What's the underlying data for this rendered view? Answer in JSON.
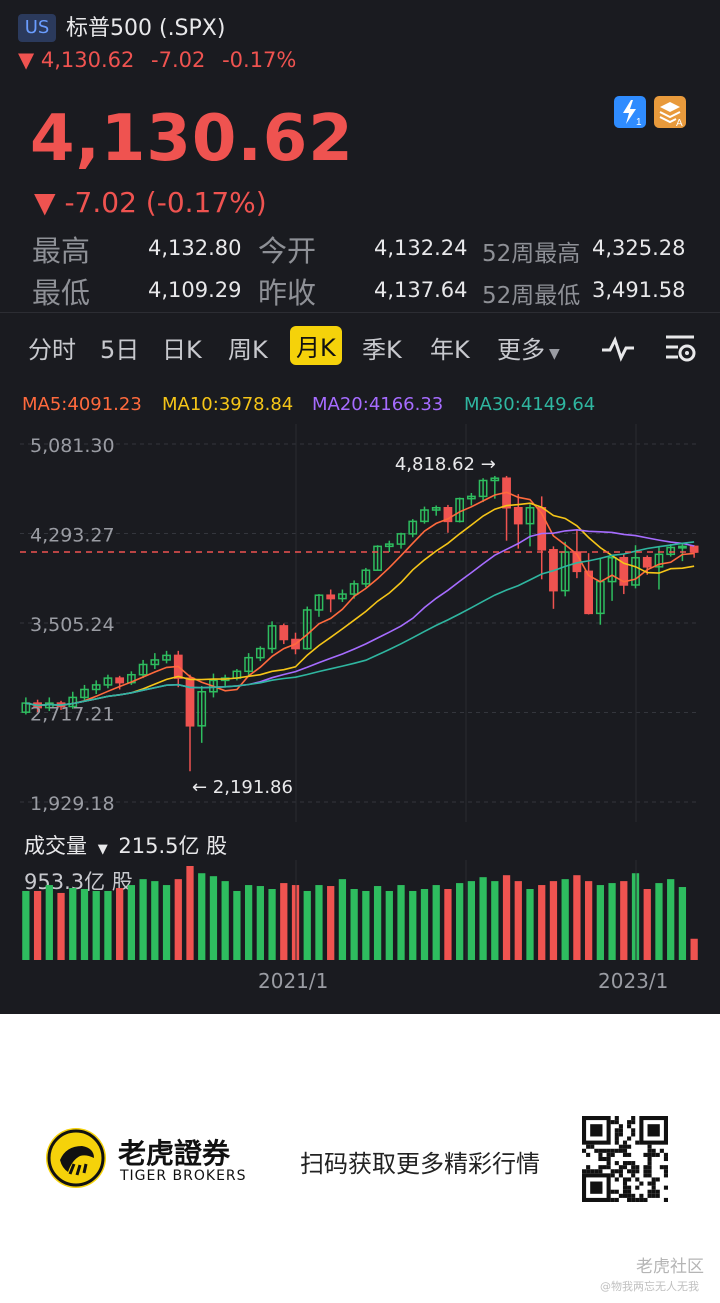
{
  "header": {
    "market": "US",
    "title": "标普500 (.SPX)",
    "sub_arrow": "▼",
    "sub_price": "4,130.62",
    "sub_change": "-7.02",
    "sub_pct": "-0.17%",
    "price": "4,130.62",
    "change_arrow": "▼",
    "change_text": "-7.02 (-0.17%)",
    "icons": [
      "lightning-icon",
      "layers-icon"
    ]
  },
  "stats": {
    "high_label": "最高",
    "high": "4,132.80",
    "open_label": "今开",
    "open": "4,132.24",
    "w52_high_label": "52周最高",
    "w52_high": "4,325.28",
    "low_label": "最低",
    "low": "4,109.29",
    "prev_label": "昨收",
    "prev": "4,137.64",
    "w52_low_label": "52周最低",
    "w52_low": "3,491.58"
  },
  "tabs": {
    "items": [
      "分时",
      "5日",
      "日K",
      "周K",
      "月K",
      "季K",
      "年K",
      "更多"
    ],
    "active": "月K"
  },
  "ma": {
    "ma5": "MA5:4091.23",
    "ma10": "MA10:3978.84",
    "ma20": "MA20:4166.33",
    "ma30": "MA30:4149.64",
    "colors": {
      "ma5": "#ff6a3d",
      "ma10": "#f5c518",
      "ma20": "#a66cff",
      "ma30": "#2fb6a0",
      "up": "#2ebd5f",
      "down": "#ef5350"
    }
  },
  "chart_data": {
    "type": "candlestick",
    "yticks": [
      "5,081.30",
      "4,293.27",
      "3,505.24",
      "2,717.21",
      "1,929.18"
    ],
    "ylim": [
      1929.18,
      5081.3
    ],
    "xticks": [
      "2021/1",
      "2023/1"
    ],
    "annotations": [
      {
        "text": "4,818.62",
        "direction": "right"
      },
      {
        "text": "2,191.86",
        "direction": "left"
      }
    ],
    "last_price": 4130.62,
    "candles": [
      [
        2720,
        2800,
        2700,
        2850
      ],
      [
        2800,
        2760,
        2720,
        2830
      ],
      [
        2760,
        2800,
        2730,
        2850
      ],
      [
        2800,
        2770,
        2740,
        2820
      ],
      [
        2770,
        2850,
        2750,
        2900
      ],
      [
        2850,
        2920,
        2820,
        2960
      ],
      [
        2920,
        2960,
        2880,
        3000
      ],
      [
        2960,
        3020,
        2930,
        3050
      ],
      [
        3020,
        2980,
        2920,
        3040
      ],
      [
        2980,
        3050,
        2960,
        3080
      ],
      [
        3050,
        3140,
        3020,
        3180
      ],
      [
        3140,
        3180,
        3100,
        3240
      ],
      [
        3180,
        3220,
        3150,
        3260
      ],
      [
        3220,
        3020,
        2940,
        3260
      ],
      [
        3020,
        2600,
        2200,
        3050
      ],
      [
        2600,
        2900,
        2450,
        2950
      ],
      [
        2900,
        3000,
        2850,
        3060
      ],
      [
        3000,
        3020,
        2950,
        3050
      ],
      [
        3020,
        3080,
        3000,
        3100
      ],
      [
        3080,
        3200,
        3040,
        3240
      ],
      [
        3200,
        3280,
        3170,
        3300
      ],
      [
        3280,
        3480,
        3240,
        3520
      ],
      [
        3480,
        3360,
        3320,
        3500
      ],
      [
        3360,
        3280,
        3230,
        3420
      ],
      [
        3280,
        3620,
        3270,
        3650
      ],
      [
        3620,
        3750,
        3560,
        3760
      ],
      [
        3750,
        3720,
        3600,
        3800
      ],
      [
        3720,
        3760,
        3690,
        3800
      ],
      [
        3760,
        3850,
        3720,
        3880
      ],
      [
        3850,
        3970,
        3820,
        3990
      ],
      [
        3970,
        4180,
        3970,
        4190
      ],
      [
        4180,
        4200,
        4130,
        4230
      ],
      [
        4200,
        4290,
        4160,
        4300
      ],
      [
        4290,
        4400,
        4260,
        4420
      ],
      [
        4400,
        4500,
        4380,
        4530
      ],
      [
        4500,
        4520,
        4450,
        4540
      ],
      [
        4520,
        4400,
        4300,
        4545
      ],
      [
        4400,
        4600,
        4390,
        4610
      ],
      [
        4600,
        4620,
        4540,
        4650
      ],
      [
        4620,
        4760,
        4570,
        4780
      ],
      [
        4760,
        4780,
        4600,
        4800
      ],
      [
        4780,
        4520,
        4230,
        4800
      ],
      [
        4520,
        4380,
        4160,
        4640
      ],
      [
        4380,
        4520,
        4180,
        4550
      ],
      [
        4520,
        4150,
        3890,
        4620
      ],
      [
        4150,
        3790,
        3630,
        4180
      ],
      [
        3790,
        4130,
        3740,
        4220
      ],
      [
        4130,
        3960,
        3900,
        4330
      ],
      [
        3960,
        3590,
        3580,
        4120
      ],
      [
        3590,
        3870,
        3490,
        4080
      ],
      [
        3870,
        4080,
        3700,
        4100
      ],
      [
        4080,
        3840,
        3760,
        4110
      ],
      [
        3840,
        4080,
        3810,
        4190
      ],
      [
        4080,
        4000,
        3930,
        4100
      ],
      [
        4000,
        4110,
        3800,
        4170
      ],
      [
        4110,
        4170,
        4090,
        4200
      ],
      [
        4170,
        4180,
        4050,
        4200
      ],
      [
        4180,
        4130,
        4080,
        4190
      ]
    ],
    "volumes": [
      700,
      700,
      760,
      680,
      730,
      720,
      700,
      700,
      730,
      760,
      820,
      800,
      760,
      820,
      953.3,
      880,
      850,
      800,
      700,
      760,
      750,
      720,
      780,
      760,
      700,
      760,
      750,
      820,
      720,
      700,
      750,
      700,
      760,
      700,
      720,
      760,
      720,
      780,
      800,
      840,
      800,
      860,
      800,
      720,
      760,
      800,
      820,
      860,
      800,
      760,
      780,
      800,
      880,
      720,
      780,
      820,
      740,
      215.5
    ]
  },
  "volume": {
    "label": "成交量",
    "caret": "▼",
    "current": "215.5亿 股",
    "max": "953.3亿 股"
  },
  "footer": {
    "brand_cn": "老虎證券",
    "brand_en": "TIGER BROKERS",
    "cta": "扫码获取更多精彩行情",
    "watermark": "老虎社区",
    "watermark_user": "@物我两忘无人无我"
  }
}
